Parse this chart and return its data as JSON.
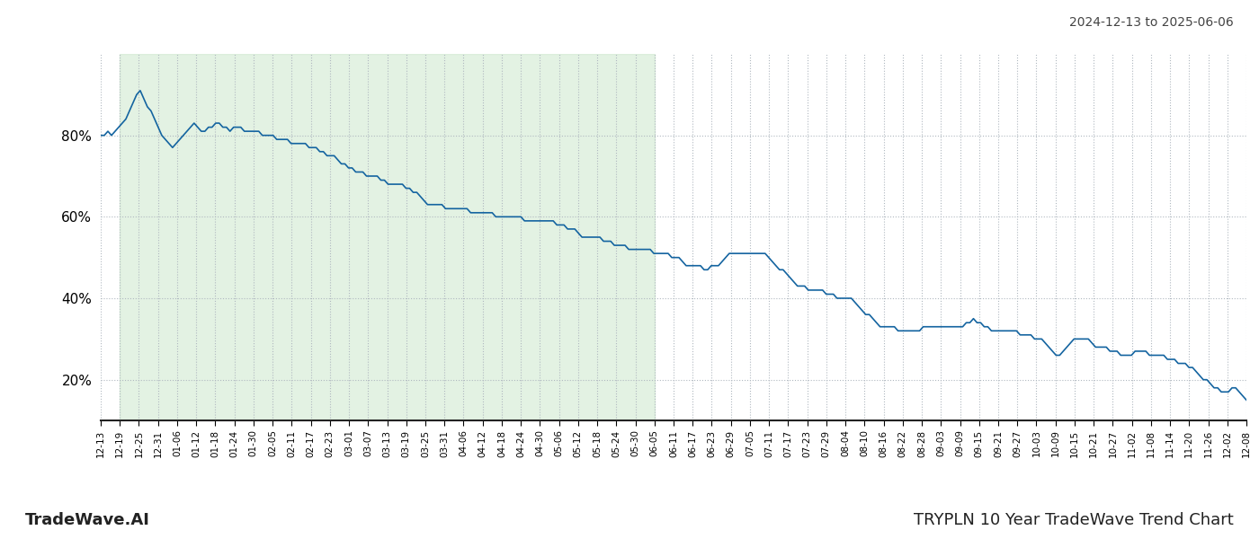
{
  "title_top_right": "2024-12-13 to 2025-06-06",
  "title_bottom_left": "TradeWave.AI",
  "title_bottom_right": "TRYPLN 10 Year TradeWave Trend Chart",
  "line_color": "#1464a0",
  "line_width": 1.2,
  "shaded_region_color": "#c8e6c8",
  "shaded_region_alpha": 0.5,
  "background_color": "#ffffff",
  "grid_color": "#b0b8c0",
  "grid_style": ":",
  "ylim": [
    10,
    100
  ],
  "yticks": [
    20,
    40,
    60,
    80
  ],
  "x_labels": [
    "12-13",
    "12-19",
    "12-25",
    "12-31",
    "01-06",
    "01-12",
    "01-18",
    "01-24",
    "01-30",
    "02-05",
    "02-11",
    "02-17",
    "02-23",
    "03-01",
    "03-07",
    "03-13",
    "03-19",
    "03-25",
    "03-31",
    "04-06",
    "04-12",
    "04-18",
    "04-24",
    "04-30",
    "05-06",
    "05-12",
    "05-18",
    "05-24",
    "05-30",
    "06-05",
    "06-11",
    "06-17",
    "06-23",
    "06-29",
    "07-05",
    "07-11",
    "07-17",
    "07-23",
    "07-29",
    "08-04",
    "08-10",
    "08-16",
    "08-22",
    "08-28",
    "09-03",
    "09-09",
    "09-15",
    "09-21",
    "09-27",
    "10-03",
    "10-09",
    "10-15",
    "10-21",
    "10-27",
    "11-02",
    "11-08",
    "11-14",
    "11-20",
    "11-26",
    "12-02",
    "12-08"
  ],
  "shaded_label_start": "12-19",
  "shaded_label_end": "06-01",
  "values": [
    80,
    80,
    81,
    80,
    81,
    82,
    83,
    84,
    86,
    88,
    90,
    91,
    89,
    87,
    86,
    84,
    82,
    80,
    79,
    78,
    77,
    78,
    79,
    80,
    81,
    82,
    83,
    82,
    81,
    81,
    82,
    82,
    83,
    83,
    82,
    82,
    81,
    82,
    82,
    82,
    81,
    81,
    81,
    81,
    81,
    80,
    80,
    80,
    80,
    79,
    79,
    79,
    79,
    78,
    78,
    78,
    78,
    78,
    77,
    77,
    77,
    76,
    76,
    75,
    75,
    75,
    74,
    73,
    73,
    72,
    72,
    71,
    71,
    71,
    70,
    70,
    70,
    70,
    69,
    69,
    68,
    68,
    68,
    68,
    68,
    67,
    67,
    66,
    66,
    65,
    64,
    63,
    63,
    63,
    63,
    63,
    62,
    62,
    62,
    62,
    62,
    62,
    62,
    61,
    61,
    61,
    61,
    61,
    61,
    61,
    60,
    60,
    60,
    60,
    60,
    60,
    60,
    60,
    59,
    59,
    59,
    59,
    59,
    59,
    59,
    59,
    59,
    58,
    58,
    58,
    57,
    57,
    57,
    56,
    55,
    55,
    55,
    55,
    55,
    55,
    54,
    54,
    54,
    53,
    53,
    53,
    53,
    52,
    52,
    52,
    52,
    52,
    52,
    52,
    51,
    51,
    51,
    51,
    51,
    50,
    50,
    50,
    49,
    48,
    48,
    48,
    48,
    48,
    47,
    47,
    48,
    48,
    48,
    49,
    50,
    51,
    51,
    51,
    51,
    51,
    51,
    51,
    51,
    51,
    51,
    51,
    50,
    49,
    48,
    47,
    47,
    46,
    45,
    44,
    43,
    43,
    43,
    42,
    42,
    42,
    42,
    42,
    41,
    41,
    41,
    40,
    40,
    40,
    40,
    40,
    39,
    38,
    37,
    36,
    36,
    35,
    34,
    33,
    33,
    33,
    33,
    33,
    32,
    32,
    32,
    32,
    32,
    32,
    32,
    33,
    33,
    33,
    33,
    33,
    33,
    33,
    33,
    33,
    33,
    33,
    33,
    34,
    34,
    35,
    34,
    34,
    33,
    33,
    32,
    32,
    32,
    32,
    32,
    32,
    32,
    32,
    31,
    31,
    31,
    31,
    30,
    30,
    30,
    29,
    28,
    27,
    26,
    26,
    27,
    28,
    29,
    30,
    30,
    30,
    30,
    30,
    29,
    28,
    28,
    28,
    28,
    27,
    27,
    27,
    26,
    26,
    26,
    26,
    27,
    27,
    27,
    27,
    26,
    26,
    26,
    26,
    26,
    25,
    25,
    25,
    24,
    24,
    24,
    23,
    23,
    22,
    21,
    20,
    20,
    19,
    18,
    18,
    17,
    17,
    17,
    18,
    18,
    17,
    16,
    15
  ]
}
